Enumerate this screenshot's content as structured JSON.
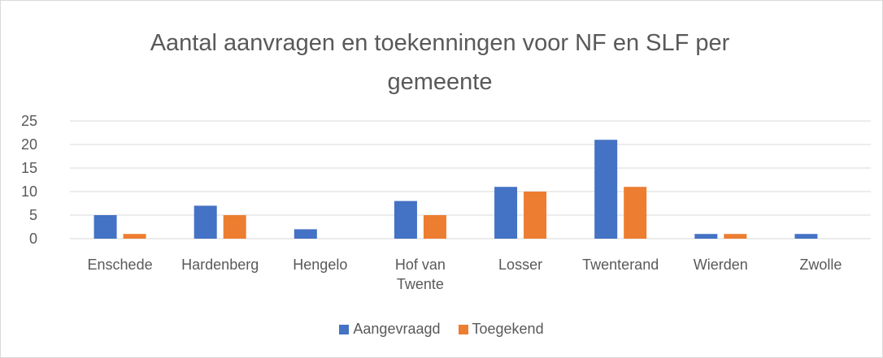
{
  "chart_data": {
    "type": "bar",
    "title": "Aantal aanvragen en toekenningen voor NF en SLF per gemeente",
    "categories": [
      "Enschede",
      "Hardenberg",
      "Hengelo",
      "Hof van Twente",
      "Losser",
      "Twenterand",
      "Wierden",
      "Zwolle"
    ],
    "series": [
      {
        "name": "Aangevraagd",
        "color": "#4472c4",
        "values": [
          5,
          7,
          2,
          8,
          11,
          21,
          1,
          1
        ]
      },
      {
        "name": "Toegekend",
        "color": "#ed7d31",
        "values": [
          1,
          5,
          0,
          5,
          10,
          11,
          1,
          0
        ]
      }
    ],
    "ylim": [
      0,
      25
    ],
    "yticks": [
      0,
      5,
      10,
      15,
      20,
      25
    ],
    "grid": true,
    "legend": "bottom"
  }
}
